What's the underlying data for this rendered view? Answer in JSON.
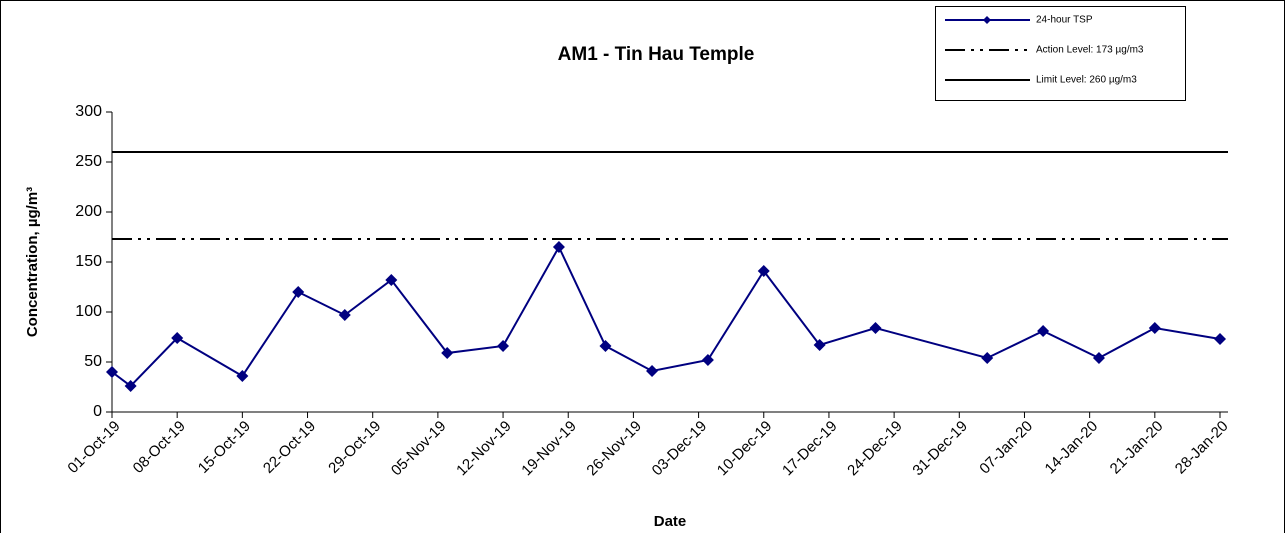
{
  "chart_data": {
    "type": "line",
    "title": "AM1 - Tin Hau Temple",
    "x_label": "Date",
    "y_label": "Concentration, µg/m³",
    "x": [
      "01-Oct-19",
      "03-Oct-19",
      "08-Oct-19",
      "15-Oct-19",
      "21-Oct-19",
      "26-Oct-19",
      "31-Oct-19",
      "06-Nov-19",
      "12-Nov-19",
      "18-Nov-19",
      "23-Nov-19",
      "28-Nov-19",
      "04-Dec-19",
      "10-Dec-19",
      "16-Dec-19",
      "22-Dec-19",
      "03-Jan-20",
      "09-Jan-20",
      "15-Jan-20",
      "21-Jan-20",
      "28-Jan-20"
    ],
    "series": [
      {
        "name": "24-hour TSP",
        "color": "#000080",
        "values": [
          40,
          26,
          74,
          36,
          120,
          97,
          132,
          59,
          66,
          165,
          66,
          41,
          52,
          141,
          67,
          84,
          54,
          81,
          54,
          84,
          73
        ]
      }
    ],
    "reference_lines": [
      {
        "name": "Action Level: 173 µg/m3",
        "value": 173,
        "style": "dashdot",
        "color": "#000000"
      },
      {
        "name": "Limit Level: 260 µg/m3",
        "value": 260,
        "style": "solid",
        "color": "#000000"
      }
    ],
    "xlim": [
      "01-Oct-19",
      "28-Jan-20"
    ],
    "xticks": [
      "01-Oct-19",
      "08-Oct-19",
      "15-Oct-19",
      "22-Oct-19",
      "29-Oct-19",
      "05-Nov-19",
      "12-Nov-19",
      "19-Nov-19",
      "26-Nov-19",
      "03-Dec-19",
      "10-Dec-19",
      "17-Dec-19",
      "24-Dec-19",
      "31-Dec-19",
      "07-Jan-20",
      "14-Jan-20",
      "21-Jan-20",
      "28-Jan-20"
    ],
    "ylim": [
      0,
      300
    ],
    "yticks": [
      0,
      50,
      100,
      150,
      200,
      250,
      300
    ],
    "grid": false,
    "legend": "top-right"
  }
}
